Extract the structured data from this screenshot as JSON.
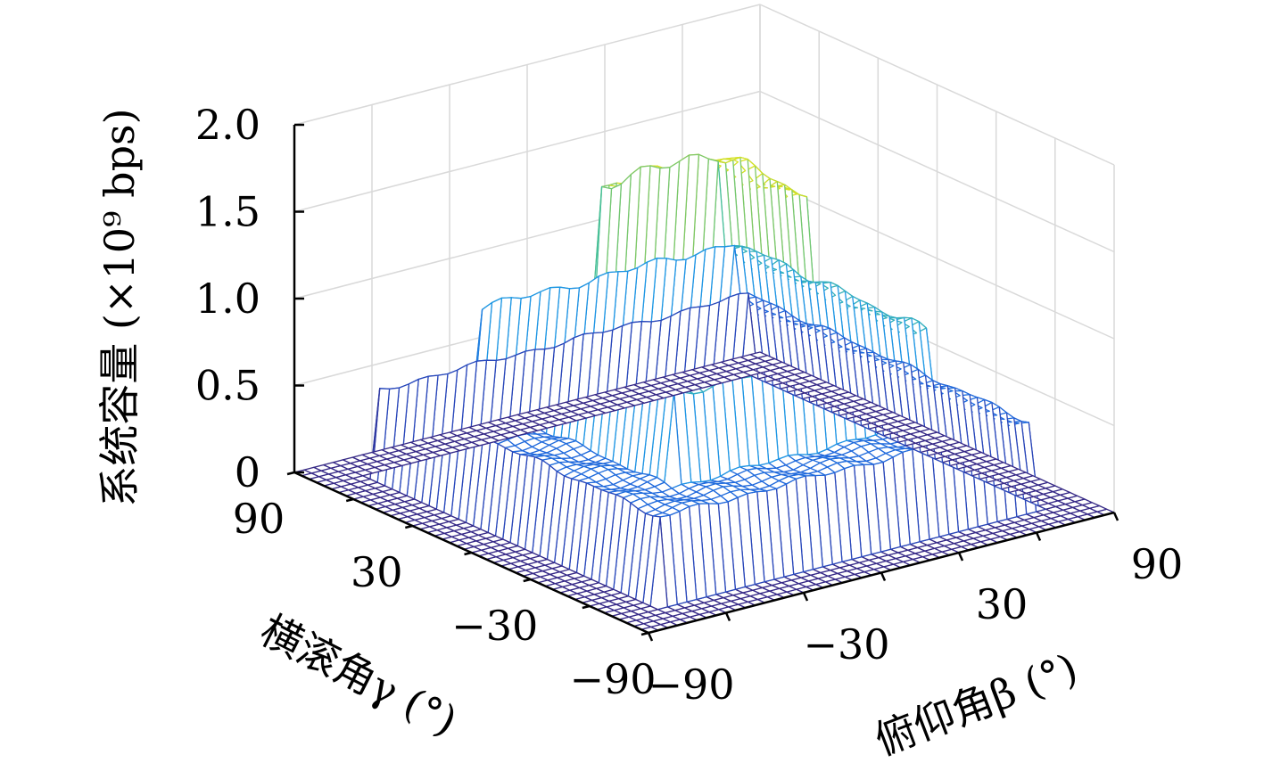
{
  "chart_data": {
    "type": "surface-mesh",
    "zlabel": "系统容量 (×10⁹ bps)",
    "xlabel": "俯仰角β (°)",
    "ylabel": "横滚角γ (°)",
    "xlim": [
      -90,
      90
    ],
    "ylim": [
      -90,
      90
    ],
    "zlim": [
      0,
      2.0
    ],
    "x_ticks": [
      "−90",
      "−30",
      "30",
      "90"
    ],
    "y_ticks": [
      "90",
      "30",
      "−30",
      "−90"
    ],
    "z_ticks": [
      "0",
      "0.5",
      "1.0",
      "1.5",
      "2.0"
    ],
    "grid": true,
    "colormap": "parula",
    "surface_levels": [
      {
        "region": "outer border (|β|≥75° or |γ|≥75°)",
        "value": 0.0
      },
      {
        "region": "|β|<75°, |γ|<75°",
        "value": 0.5
      },
      {
        "region": "|β|<50°, |γ|<50°",
        "value": 1.0
      },
      {
        "region": "|β|<25°, |γ|<25°",
        "value": 1.75
      }
    ]
  }
}
